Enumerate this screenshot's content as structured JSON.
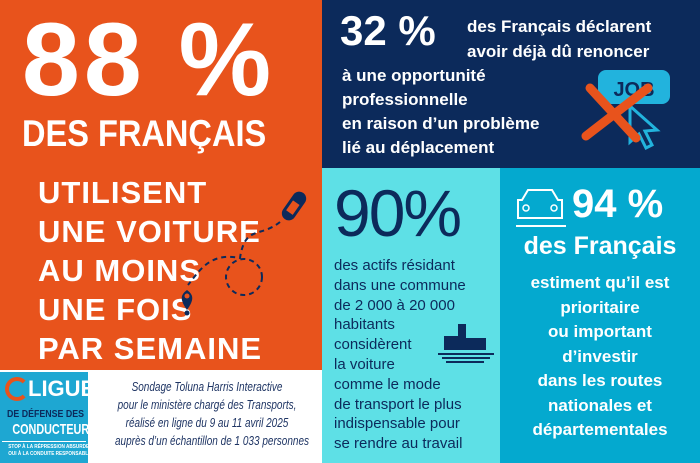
{
  "left": {
    "stat": "88 %",
    "subject": "DES FRANÇAIS",
    "lines": [
      "UTILISENT",
      "UNE VOITURE",
      "AU MOINS",
      "UNE FOIS",
      "PAR SEMAINE"
    ],
    "icon": "car-route-icon",
    "color": "#e8531c"
  },
  "footer": {
    "logo": {
      "line1": "LIGUE",
      "line2": "DE DÉFENSE DES",
      "line3": "CONDUCTEURS",
      "tagline1": "STOP À LA RÉPRESSION ABSURDE",
      "tagline2": "OUI À LA CONDUITE RESPONSABLE"
    },
    "source": [
      "Sondage Toluna Harris Interactive",
      "pour le ministère chargé des Transports,",
      "réalisé en ligne du 9 au 11 avril 2025",
      "auprès d’un échantillon de 1 033 personnes"
    ]
  },
  "top": {
    "stat": "32 %",
    "lead": [
      "des Français déclarent",
      "avoir déjà dû renoncer"
    ],
    "lines": [
      "à une opportunité",
      "professionnelle",
      "en raison d’un problème",
      "lié au déplacement"
    ],
    "icon_text": "JOB",
    "color": "#0c2a5b"
  },
  "middle": {
    "stat": "90%",
    "lines": [
      "des actifs résidant",
      "dans une commune",
      "de 2 000 à 20 000",
      "habitants",
      "considèrent",
      "la voiture",
      "comme le mode",
      "de transport le plus",
      "indispensable pour",
      "se rendre au travail"
    ],
    "icon": "village-icon",
    "color": "#5ee0e6"
  },
  "right": {
    "stat": "94 %",
    "subject": "des Français",
    "lines": [
      "estiment qu’il est",
      "prioritaire",
      "ou important",
      "d’investir",
      "dans les routes",
      "nationales et",
      "départementales"
    ],
    "icon": "car-pothole-icon",
    "color": "#04a9cf"
  }
}
